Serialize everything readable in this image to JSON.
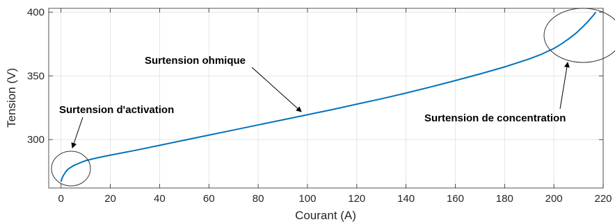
{
  "chart_data": {
    "type": "line",
    "xlabel": "Courant (A)",
    "ylabel": "Tension (V)",
    "xlim": [
      -5,
      220
    ],
    "ylim": [
      262,
      403
    ],
    "grid": true,
    "x_ticks": [
      "0",
      "20",
      "40",
      "60",
      "80",
      "100",
      "120",
      "140",
      "160",
      "180",
      "200",
      "220"
    ],
    "y_ticks": [
      "300",
      "350",
      "400"
    ],
    "series": [
      {
        "color": "#0072BD",
        "x": [
          0,
          0.5,
          1,
          2,
          3,
          5,
          8,
          10,
          15,
          20,
          30,
          40,
          50,
          60,
          70,
          80,
          90,
          100,
          110,
          120,
          130,
          140,
          150,
          160,
          170,
          180,
          190,
          195,
          200,
          203,
          206,
          209,
          212,
          214,
          216,
          217
        ],
        "y": [
          267,
          270,
          272,
          275,
          277,
          279.5,
          282,
          283.5,
          285.8,
          287.8,
          291.5,
          295.5,
          299.5,
          303.5,
          307.5,
          311.5,
          315.5,
          319.5,
          323.5,
          327.8,
          332,
          336.5,
          341.3,
          346.3,
          351.5,
          357,
          363.3,
          367,
          371.5,
          375,
          379,
          383.5,
          389,
          393,
          397.5,
          400
        ]
      }
    ],
    "annotations": [
      {
        "text": "Surtension d'activation",
        "x": 4,
        "y": 276
      },
      {
        "text": "Surtension ohmique",
        "x": 100,
        "y": 320
      },
      {
        "text": "Surtension de concentration",
        "x": 212,
        "y": 385
      }
    ]
  }
}
